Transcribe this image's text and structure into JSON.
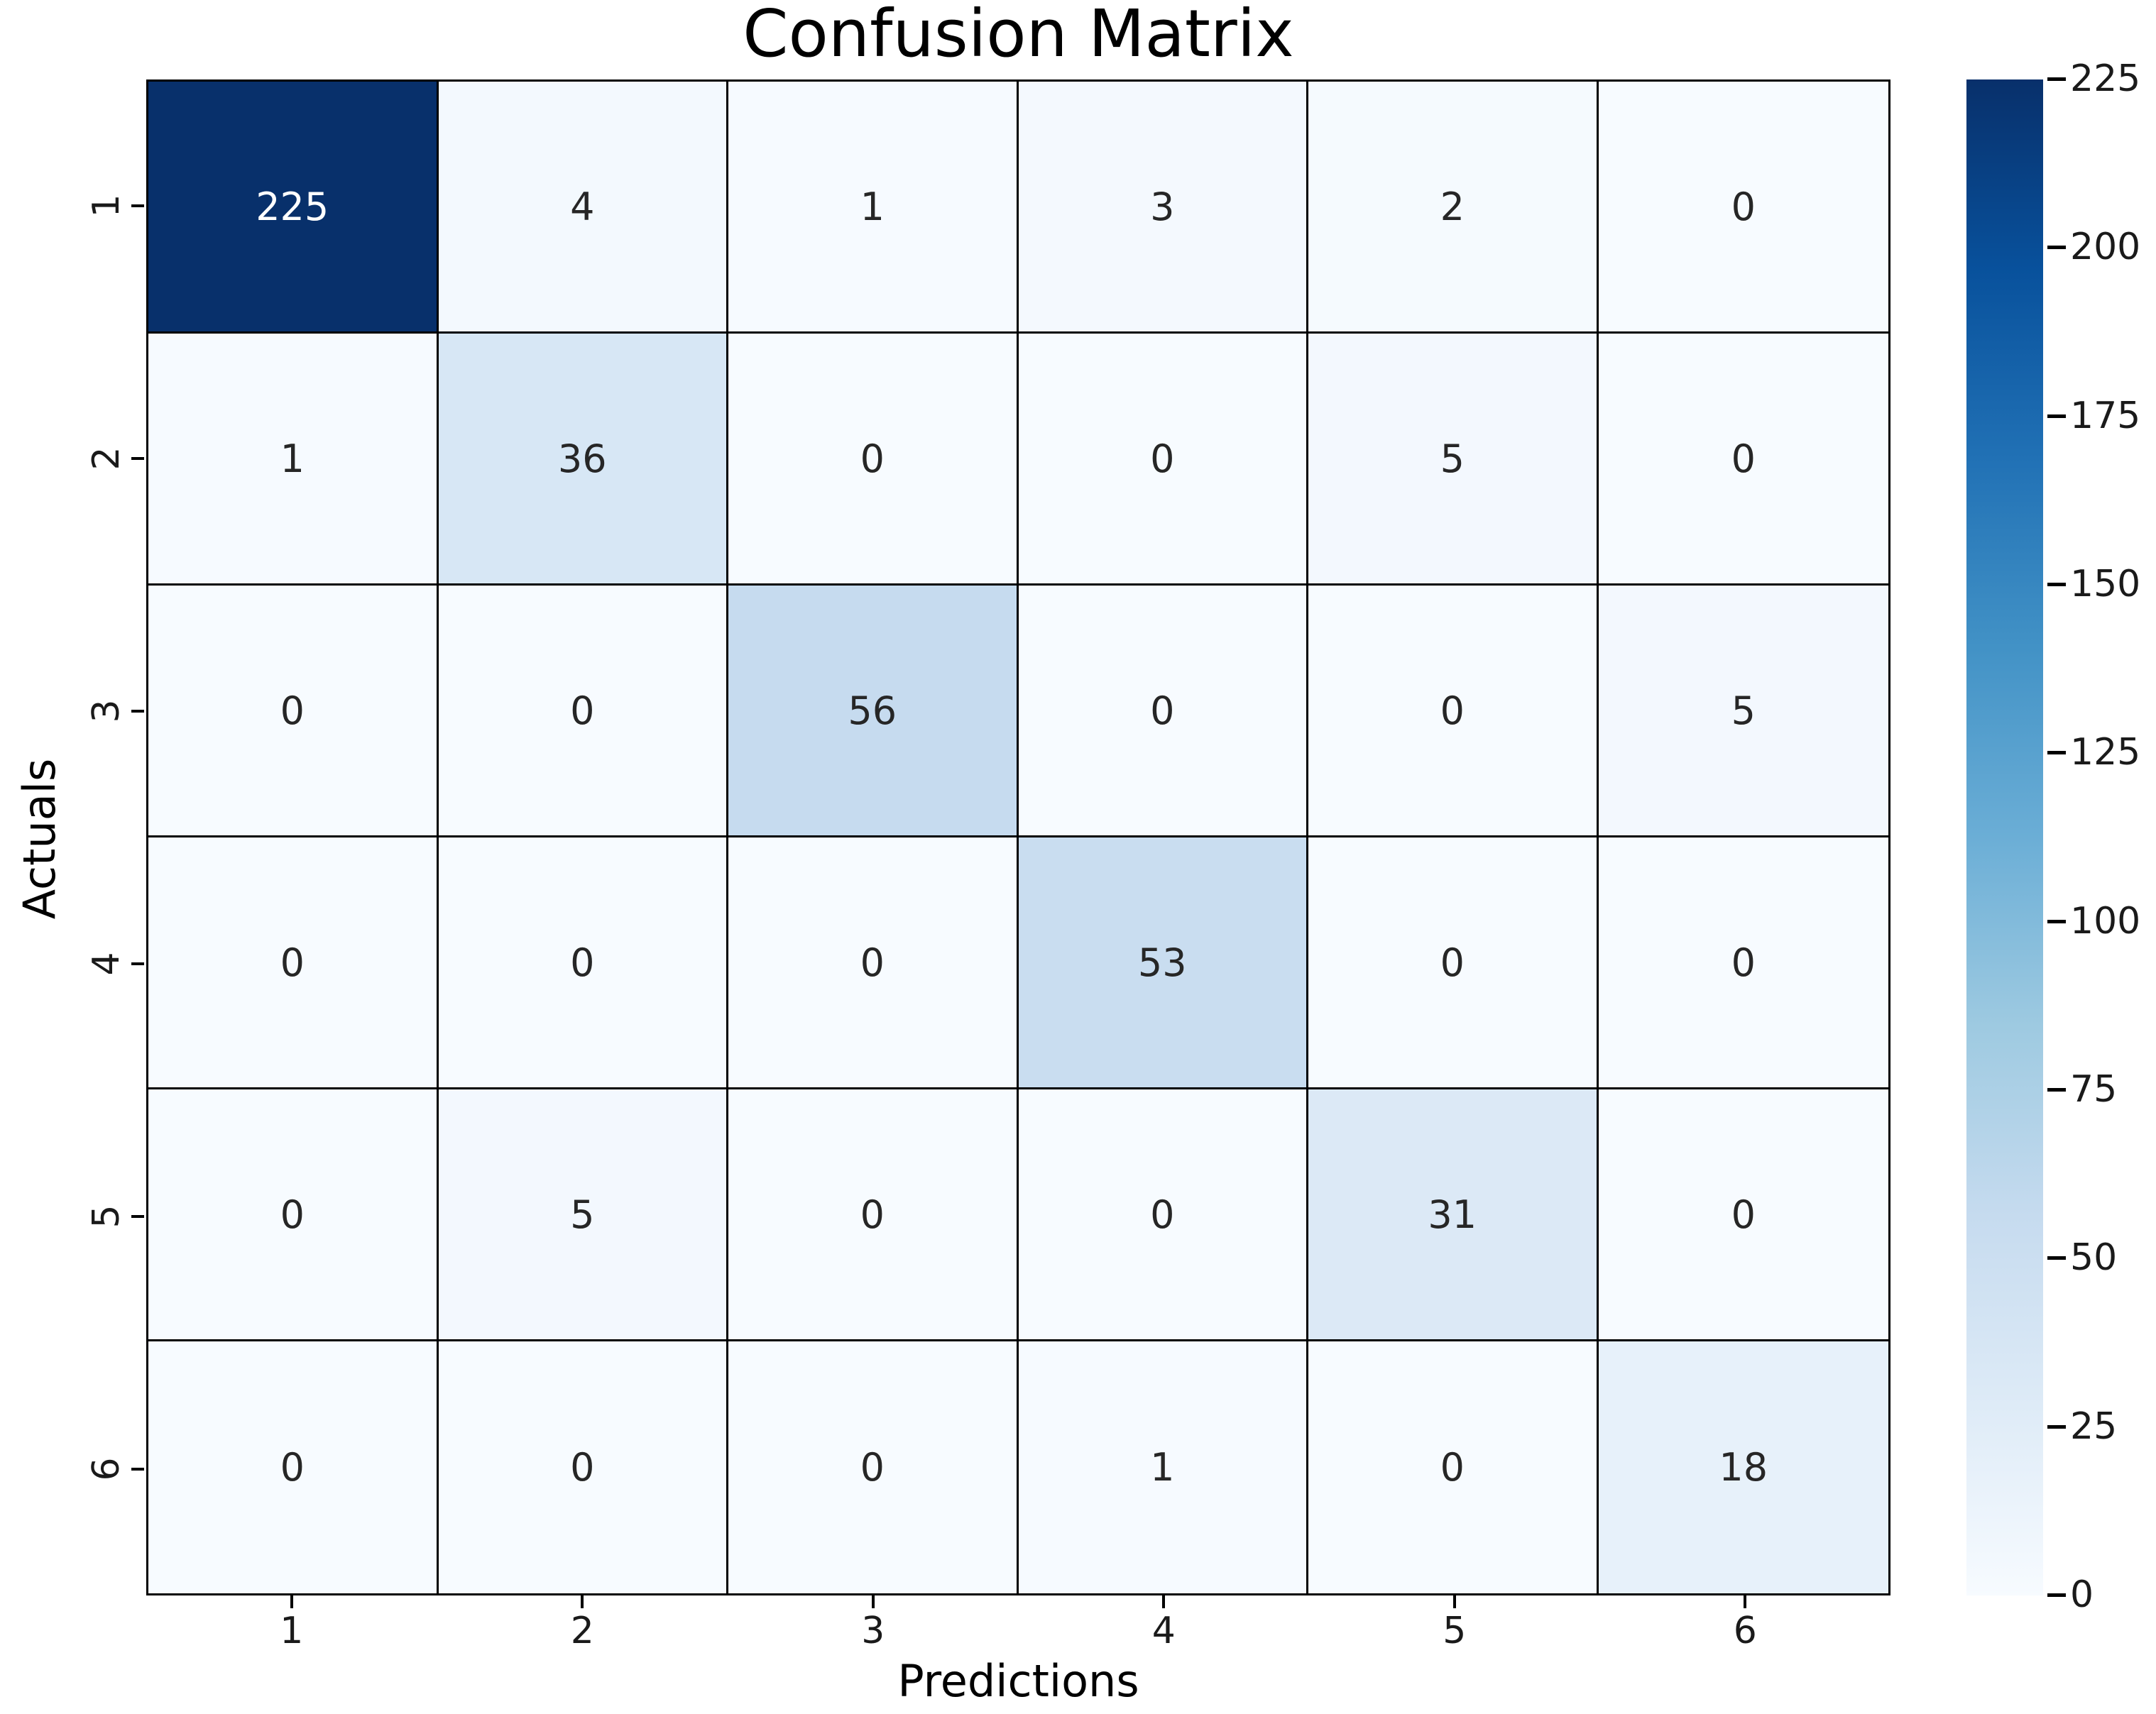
{
  "chart_data": {
    "type": "heatmap",
    "title": "Confusion Matrix",
    "xlabel": "Predictions",
    "ylabel": "Actuals",
    "x_ticklabels": [
      "1",
      "2",
      "3",
      "4",
      "5",
      "6"
    ],
    "y_ticklabels": [
      "1",
      "2",
      "3",
      "4",
      "5",
      "6"
    ],
    "matrix": [
      [
        225,
        4,
        1,
        3,
        2,
        0
      ],
      [
        1,
        36,
        0,
        0,
        5,
        0
      ],
      [
        0,
        0,
        56,
        0,
        0,
        5
      ],
      [
        0,
        0,
        0,
        53,
        0,
        0
      ],
      [
        0,
        5,
        0,
        0,
        31,
        0
      ],
      [
        0,
        0,
        0,
        1,
        0,
        18
      ]
    ],
    "vmin": 0,
    "vmax": 225,
    "colorbar_tick_values": [
      225,
      200,
      175,
      150,
      125,
      100,
      75,
      50,
      25,
      0
    ],
    "colormap": "Blues",
    "colormap_stops": [
      {
        "pos": 0.0,
        "color": "#f7fbff"
      },
      {
        "pos": 0.125,
        "color": "#deebf7"
      },
      {
        "pos": 0.25,
        "color": "#c6dbef"
      },
      {
        "pos": 0.375,
        "color": "#9ecae1"
      },
      {
        "pos": 0.5,
        "color": "#6baed6"
      },
      {
        "pos": 0.625,
        "color": "#4292c6"
      },
      {
        "pos": 0.75,
        "color": "#2171b5"
      },
      {
        "pos": 0.875,
        "color": "#08519c"
      },
      {
        "pos": 1.0,
        "color": "#08306b"
      }
    ],
    "grid_line_color": "#000000",
    "annotation_text_dark": "#262626",
    "annotation_text_light": "#ffffff",
    "legend_position": "right-colorbar",
    "grid": "cell-borders-on"
  }
}
